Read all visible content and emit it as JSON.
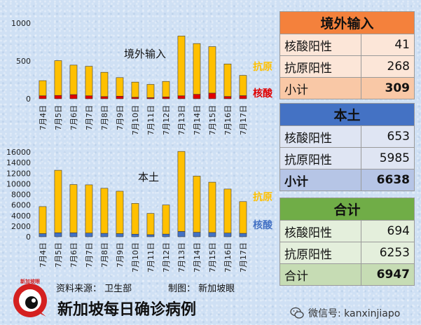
{
  "chart_data": [
    {
      "type": "bar",
      "stacked": true,
      "title": "境外输入",
      "categories": [
        "7月4日",
        "7月5日",
        "7月6日",
        "7月7日",
        "7月8日",
        "7月9日",
        "7月10日",
        "7月11日",
        "7月12日",
        "7月13日",
        "7月14日",
        "7月15日",
        "7月16日",
        "7月17日"
      ],
      "series": [
        {
          "name": "核酸",
          "color": "#e00000",
          "values": [
            40,
            45,
            55,
            40,
            30,
            35,
            20,
            15,
            25,
            40,
            60,
            75,
            30,
            41
          ]
        },
        {
          "name": "抗原",
          "color": "#ffc000",
          "values": [
            200,
            460,
            390,
            390,
            320,
            245,
            200,
            175,
            205,
            790,
            670,
            615,
            430,
            268
          ]
        }
      ],
      "yticks": [
        "0",
        "500",
        "1000"
      ],
      "ylim": [
        0,
        1000
      ],
      "grid": false,
      "legend": "right"
    },
    {
      "type": "bar",
      "stacked": true,
      "title": "本土",
      "categories": [
        "7月4日",
        "7月5日",
        "7月6日",
        "7月7日",
        "7月8日",
        "7月9日",
        "7月10日",
        "7月11日",
        "7月12日",
        "7月13日",
        "7月14日",
        "7月15日",
        "7月16日",
        "7月17日"
      ],
      "series": [
        {
          "name": "核酸",
          "color": "#4472c4",
          "values": [
            600,
            750,
            750,
            700,
            650,
            600,
            500,
            400,
            500,
            1000,
            850,
            800,
            700,
            653
          ]
        },
        {
          "name": "抗原",
          "color": "#ffc000",
          "values": [
            5100,
            11800,
            9100,
            9100,
            8500,
            8000,
            5800,
            4000,
            5500,
            15100,
            10600,
            9500,
            8300,
            5985
          ]
        }
      ],
      "yticks": [
        "0",
        "2000",
        "4000",
        "6000",
        "8000",
        "10000",
        "12000",
        "14000",
        "16000"
      ],
      "ylim": [
        0,
        16000
      ],
      "grid": false,
      "legend": "right"
    }
  ],
  "tables": [
    {
      "title": "境外输入",
      "rows": [
        {
          "label": "核酸阳性",
          "value": "41"
        },
        {
          "label": "抗原阳性",
          "value": "268"
        }
      ],
      "total": {
        "label": "小计",
        "value": "309"
      }
    },
    {
      "title": "本土",
      "rows": [
        {
          "label": "核酸阳性",
          "value": "653"
        },
        {
          "label": "抗原阳性",
          "value": "5985"
        }
      ],
      "total": {
        "label": "小计",
        "value": "6638"
      }
    },
    {
      "title": "合计",
      "rows": [
        {
          "label": "核酸阳性",
          "value": "694"
        },
        {
          "label": "抗原阳性",
          "value": "6253"
        }
      ],
      "total": {
        "label": "合计",
        "value": "6947"
      }
    }
  ],
  "footer": {
    "source": "资料来源：  卫生部",
    "producer": "制图：  新加坡眼",
    "title": "新加坡每日确诊病例",
    "logo_text": "新加坡眼",
    "watermark": "微信号: kanxinjiapo"
  }
}
